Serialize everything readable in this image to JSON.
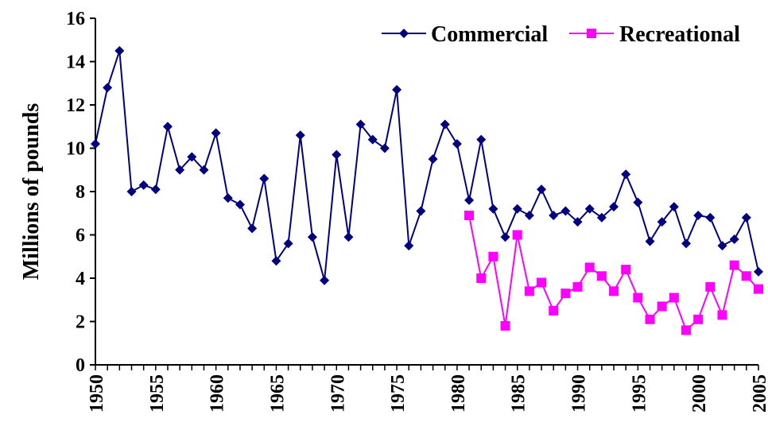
{
  "chart_data": {
    "type": "line",
    "title": "",
    "xlabel": "",
    "ylabel": "Millions of pounds",
    "xlim": [
      1950,
      2005
    ],
    "ylim": [
      0,
      16
    ],
    "y_ticks": [
      0,
      2,
      4,
      6,
      8,
      10,
      12,
      14,
      16
    ],
    "x_tick_labels": [
      "1950",
      "1955",
      "1960",
      "1965",
      "1970",
      "1975",
      "1980",
      "1985",
      "1990",
      "1995",
      "2000",
      "2005"
    ],
    "legend_position": "top-right",
    "grid": false,
    "series": [
      {
        "name": "Commercial",
        "color": "#000080",
        "marker": "diamond",
        "x": [
          1950,
          1951,
          1952,
          1953,
          1954,
          1955,
          1956,
          1957,
          1958,
          1959,
          1960,
          1961,
          1962,
          1963,
          1964,
          1965,
          1966,
          1967,
          1968,
          1969,
          1970,
          1971,
          1972,
          1973,
          1974,
          1975,
          1976,
          1977,
          1978,
          1979,
          1980,
          1981,
          1982,
          1983,
          1984,
          1985,
          1986,
          1987,
          1988,
          1989,
          1990,
          1991,
          1992,
          1993,
          1994,
          1995,
          1996,
          1997,
          1998,
          1999,
          2000,
          2001,
          2002,
          2003,
          2004,
          2005
        ],
        "values": [
          10.2,
          12.8,
          14.5,
          8.0,
          8.3,
          8.1,
          11.0,
          9.0,
          9.6,
          9.0,
          10.7,
          7.7,
          7.4,
          6.3,
          8.6,
          4.8,
          5.6,
          10.6,
          5.9,
          3.9,
          9.7,
          5.9,
          11.1,
          10.4,
          10.0,
          12.7,
          5.5,
          7.1,
          9.5,
          11.1,
          10.2,
          7.6,
          10.4,
          7.2,
          5.9,
          7.2,
          6.9,
          8.1,
          6.9,
          7.1,
          6.6,
          7.2,
          6.8,
          7.3,
          8.8,
          7.5,
          5.7,
          6.6,
          7.3,
          5.6,
          6.9,
          6.8,
          5.5,
          5.8,
          6.8,
          4.3
        ]
      },
      {
        "name": "Recreational",
        "color": "#ff00ff",
        "marker": "square",
        "x": [
          1981,
          1982,
          1983,
          1984,
          1985,
          1986,
          1987,
          1988,
          1989,
          1990,
          1991,
          1992,
          1993,
          1994,
          1995,
          1996,
          1997,
          1998,
          1999,
          2000,
          2001,
          2002,
          2003,
          2004,
          2005
        ],
        "values": [
          6.9,
          4.0,
          5.0,
          1.8,
          6.0,
          3.4,
          3.8,
          2.5,
          3.3,
          3.6,
          4.5,
          4.1,
          3.4,
          4.4,
          3.1,
          2.1,
          2.7,
          3.1,
          1.6,
          2.1,
          3.6,
          2.3,
          4.6,
          4.1,
          3.5
        ]
      }
    ]
  }
}
